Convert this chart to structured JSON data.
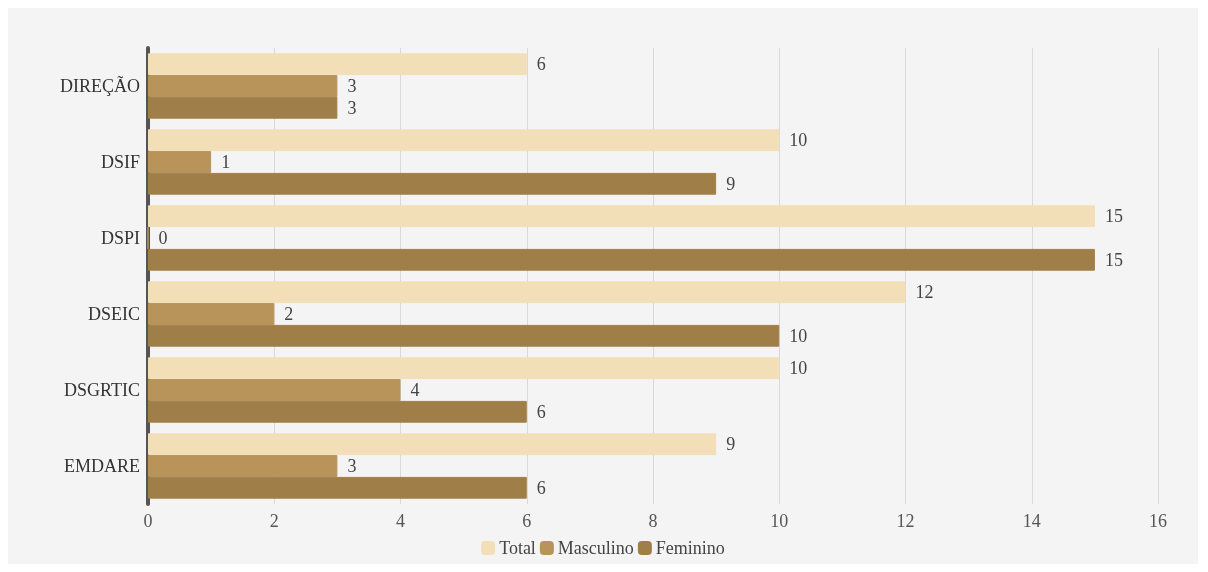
{
  "chart_data": {
    "type": "bar",
    "orientation": "horizontal",
    "categories": [
      "DIREÇÃO",
      "DSIF",
      "DSPI",
      "DSEIC",
      "DSGRTIC",
      "EMDARE"
    ],
    "series": [
      {
        "name": "Total",
        "color": "#f2dfb8",
        "values": [
          6,
          10,
          15,
          12,
          10,
          9
        ]
      },
      {
        "name": "Masculino",
        "color": "#b8945a",
        "values": [
          3,
          1,
          0,
          2,
          4,
          3
        ]
      },
      {
        "name": "Feminino",
        "color": "#a07e48",
        "values": [
          3,
          9,
          15,
          10,
          6,
          6
        ]
      }
    ],
    "xlim": [
      0,
      16
    ],
    "xticks": [
      0,
      2,
      4,
      6,
      8,
      10,
      12,
      14,
      16
    ],
    "grid": "x",
    "legend": "bottom",
    "data_labels": true
  }
}
